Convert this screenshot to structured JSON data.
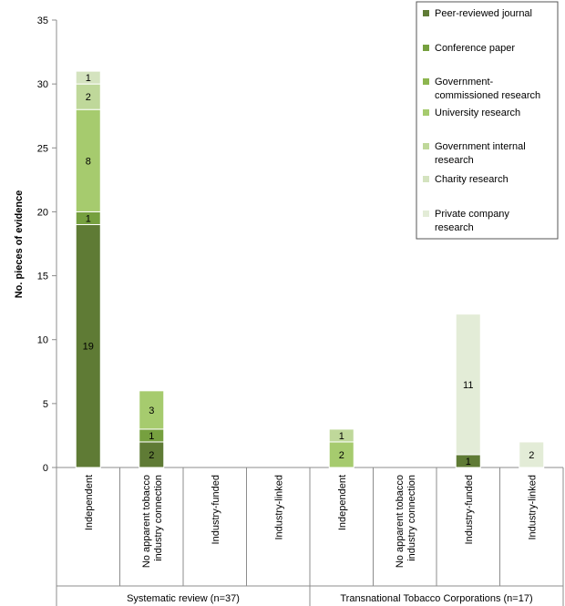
{
  "chart_data": {
    "type": "bar",
    "stacked": true,
    "ylabel": "No. pieces of evidence",
    "ylim": [
      0,
      35
    ],
    "yticks": [
      0,
      5,
      10,
      15,
      20,
      25,
      30,
      35
    ],
    "grid": false,
    "legend_position": "top-right",
    "categories": [
      "Independent",
      "No apparent tobacco industry connection",
      "Industry-funded",
      "Industry-linked",
      "Independent",
      "No apparent tobacco industry connection",
      "Industry-funded",
      "Industry-linked"
    ],
    "category_lines": [
      [
        "Independent"
      ],
      [
        "No apparent tobacco",
        "industry connection"
      ],
      [
        "Industry-funded"
      ],
      [
        "Industry-linked"
      ],
      [
        "Independent"
      ],
      [
        "No apparent tobacco",
        "industry connection"
      ],
      [
        "Industry-funded"
      ],
      [
        "Industry-linked"
      ]
    ],
    "groups": [
      {
        "label": "Systematic review (n=37)",
        "categories": [
          0,
          1,
          2,
          3
        ]
      },
      {
        "label": "Transnational Tobacco Corporations (n=17)",
        "categories": [
          4,
          5,
          6,
          7
        ]
      }
    ],
    "series": [
      {
        "name": "Peer-reviewed journal",
        "legend_lines": [
          "Peer-reviewed journal"
        ],
        "color": "#5f7b35",
        "values": [
          19,
          2,
          0,
          0,
          0,
          0,
          1,
          0
        ]
      },
      {
        "name": "Conference paper",
        "legend_lines": [
          "Conference paper"
        ],
        "color": "#76a03f",
        "values": [
          1,
          1,
          0,
          0,
          0,
          0,
          0,
          0
        ]
      },
      {
        "name": "Government-commissioned research",
        "legend_lines": [
          "Government-",
          "commissioned research"
        ],
        "color": "#8db64f",
        "values": [
          0,
          0,
          0,
          0,
          0,
          0,
          0,
          0
        ]
      },
      {
        "name": "University research",
        "legend_lines": [
          "University research"
        ],
        "color": "#a6cb6e",
        "values": [
          8,
          3,
          0,
          0,
          2,
          0,
          0,
          0
        ]
      },
      {
        "name": "Government internal research",
        "legend_lines": [
          "Government internal",
          "research"
        ],
        "color": "#bfd89a",
        "values": [
          2,
          0,
          0,
          0,
          1,
          0,
          0,
          0
        ]
      },
      {
        "name": "Charity research",
        "legend_lines": [
          "Charity research"
        ],
        "color": "#d4e3bf",
        "values": [
          1,
          0,
          0,
          0,
          0,
          0,
          0,
          0
        ]
      },
      {
        "name": "Private company research",
        "legend_lines": [
          "Private company",
          "research"
        ],
        "color": "#e3ecd7",
        "values": [
          0,
          0,
          0,
          0,
          0,
          0,
          11,
          2
        ]
      }
    ]
  }
}
